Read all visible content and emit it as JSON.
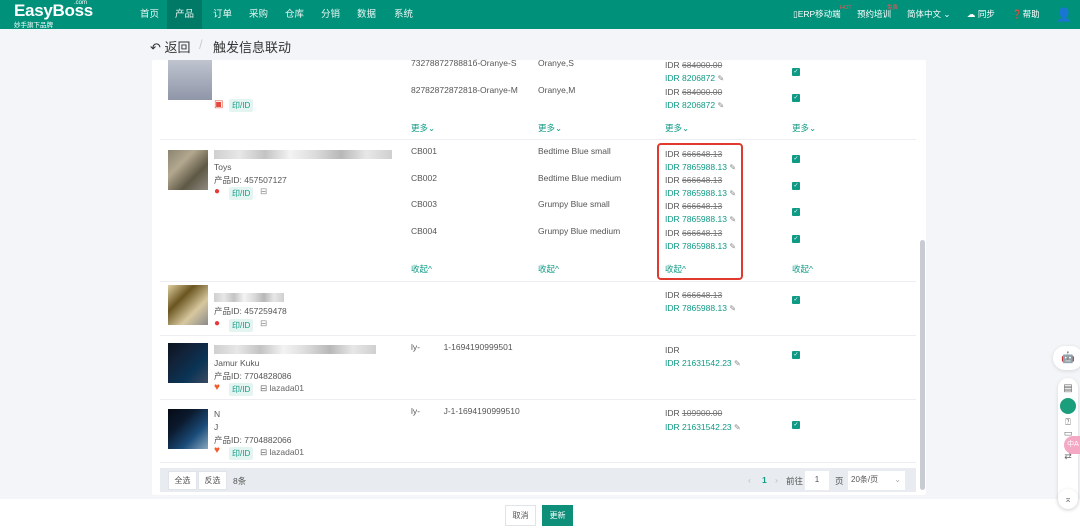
{
  "nav": {
    "logo": "EasyBoss",
    "logo_com": ".com",
    "logo_sub": "妙手旗下品牌",
    "items": [
      "首页",
      "产品",
      "订单",
      "采购",
      "仓库",
      "分销",
      "数据",
      "系统"
    ],
    "active": "产品",
    "mobile": "ERP移动端",
    "mobile_badge": "HOT",
    "training": "预约培训",
    "training_badge": "免费",
    "language": "简体中文",
    "sync": "同步",
    "help": "帮助"
  },
  "header": {
    "back": "返回",
    "title": "触发信息联动"
  },
  "rows": [
    {
      "skus": [
        "7327887278881б-Oranye-S",
        "82782872872818-Oranye-M"
      ],
      "variants": [
        "Oranye,S",
        "Oranye,M"
      ],
      "prices": [
        {
          "old": "684000.00",
          "new": "8206872"
        },
        {
          "old": "684000.00",
          "new": "8206872"
        }
      ],
      "tag": "印/ID",
      "more": "更多"
    },
    {
      "name2": "Toys",
      "product_id": "产品ID: 457507127",
      "tag": "印/ID",
      "skus": [
        "CB001",
        "CB002",
        "CB003",
        "CB004"
      ],
      "variants": [
        "Bedtime Blue small",
        "Bedtime Blue medium",
        "Grumpy Blue small",
        "Grumpy Blue medium"
      ],
      "prices": [
        {
          "old": "666648.13",
          "new": "7865988.13"
        },
        {
          "old": "666648.13",
          "new": "7865988.13"
        },
        {
          "old": "666648.13",
          "new": "7865988.13"
        },
        {
          "old": "666648.13",
          "new": "7865988.13"
        }
      ],
      "collapse": "收起"
    },
    {
      "product_id": "产品ID: 457259478",
      "tag": "印/ID",
      "prices": [
        {
          "old": "666648.13",
          "new": "7865988.13"
        }
      ]
    },
    {
      "name2": "Jamur Kuku",
      "product_id": "产品ID: 7704828086",
      "tag": "印/ID",
      "shop": "lazada01",
      "sku": "ly-          1-1694190999501",
      "prices": [
        {
          "old": "",
          "new": "21631542.23"
        }
      ]
    },
    {
      "name1": "N",
      "name2": "J",
      "product_id": "产品ID: 7704882066",
      "tag": "印/ID",
      "shop": "lazada01",
      "sku": "ly-          J-1-1694190999510",
      "prices": [
        {
          "old": "109900.00",
          "new": "21631542.23"
        }
      ]
    }
  ],
  "currency": "IDR",
  "footer": {
    "select_all": "全选",
    "invert": "反选",
    "count": "8条",
    "page": "1",
    "goto": "前往",
    "goto_value": "1",
    "page_unit": "页",
    "page_size": "20条/页"
  },
  "actions": {
    "cancel": "取消",
    "update": "更新"
  },
  "colors": {
    "brand": "#00917b",
    "highlight": "#e03a2f"
  }
}
